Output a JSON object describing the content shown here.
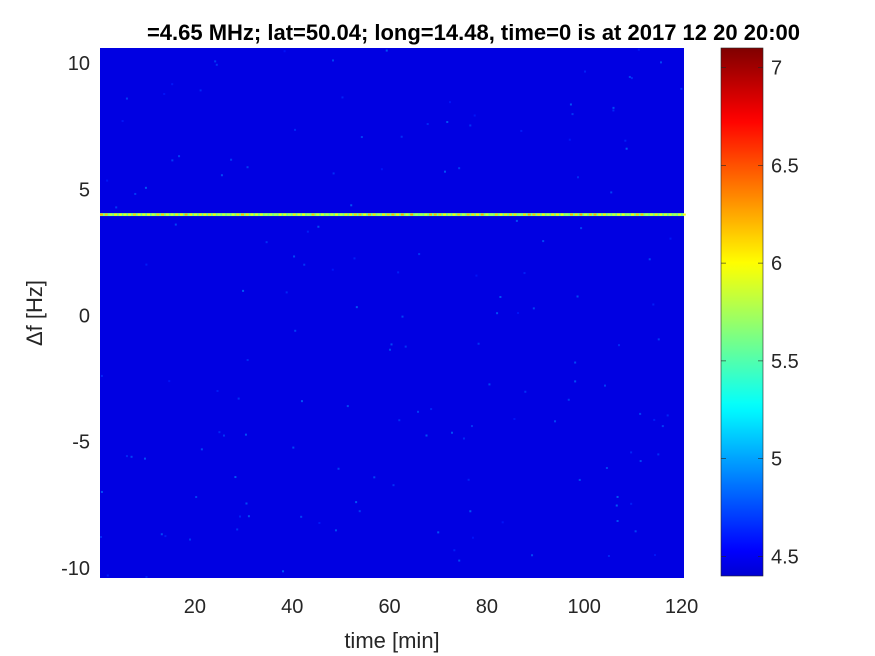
{
  "chart_data": {
    "type": "heatmap",
    "title": "=4.65 MHz;  lat=50.04; long=14.48, time=0 is at 2017 12 20 20:00",
    "xlabel": "time [min]",
    "ylabel": "Δf [Hz]",
    "xlim": [
      0.5,
      120.5
    ],
    "ylim": [
      -10.4,
      10.6
    ],
    "xticks": [
      20,
      40,
      60,
      80,
      100,
      120
    ],
    "yticks": [
      10,
      5,
      0,
      -5,
      -10
    ],
    "colormap": "jet",
    "clim": [
      4.4,
      7.1
    ],
    "colorbar_ticks": [
      7,
      6.5,
      6,
      5.5,
      5,
      4.5
    ],
    "background_value": 4.45,
    "features": [
      {
        "type": "horizontal-line",
        "y": 4.0,
        "value": 6.0,
        "x_from": 0.5,
        "x_to": 120.5
      }
    ]
  }
}
